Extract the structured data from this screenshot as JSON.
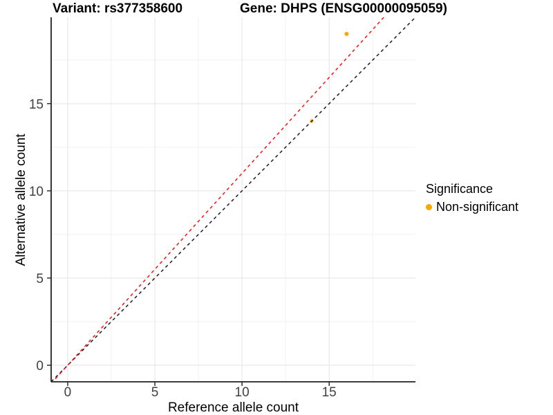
{
  "chart_data": {
    "type": "scatter",
    "title_left": "Variant: rs377358600",
    "title_right": "Gene: DHPS (ENSG00000095059)",
    "xlabel": "Reference allele count",
    "ylabel": "Alternative allele count",
    "xlim": [
      -0.95,
      19.95
    ],
    "ylim": [
      -0.95,
      19.95
    ],
    "x_major_ticks": [
      0,
      5,
      10,
      15
    ],
    "y_major_ticks": [
      0,
      5,
      10,
      15
    ],
    "x_minor_ticks": [
      2.5,
      7.5,
      12.5,
      17.5
    ],
    "y_minor_ticks": [
      2.5,
      7.5,
      12.5,
      17.5
    ],
    "grid": true,
    "points": [
      {
        "x": 16,
        "y": 19,
        "series": "Non-significant",
        "color": "#FFA500",
        "radius": 3.0
      },
      {
        "x": 14,
        "y": 14,
        "series": "Non-significant",
        "color": "#FFA500",
        "radius": 2.6
      }
    ],
    "lines": [
      {
        "name": "identity-line",
        "slope": 1.0,
        "intercept": 0,
        "color": "#1a1a1a",
        "style": "dashed"
      },
      {
        "name": "allelic-ratio-line",
        "slope": 1.1,
        "intercept": 0,
        "color": "#f50f0f",
        "style": "dashed"
      }
    ],
    "legend": {
      "title": "Significance",
      "position": "right-middle",
      "items": [
        {
          "label": "Non-significant",
          "color": "#FFA500"
        }
      ]
    },
    "style": {
      "major_grid_color": "#e3e3e3",
      "minor_grid_color": "#f1f1f1",
      "axis_line_color": "#1f1f1f",
      "tick_label_color": "#404040"
    }
  }
}
